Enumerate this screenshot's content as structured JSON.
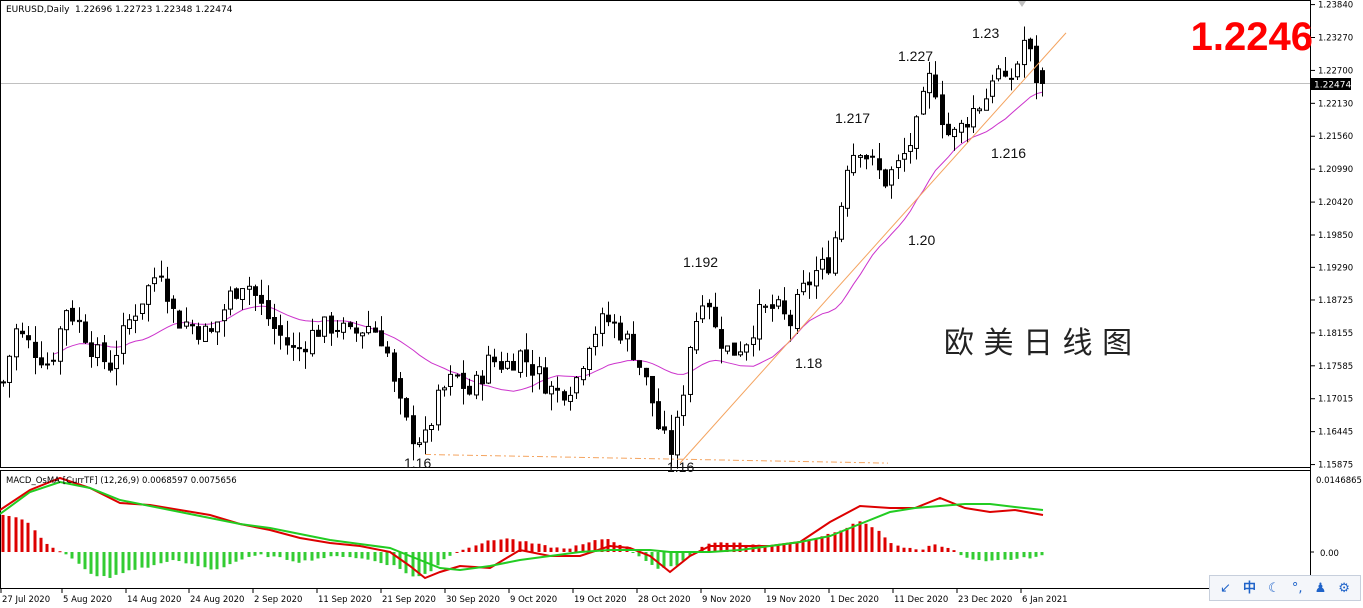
{
  "header": {
    "symbol": "EURUSD,Daily",
    "ohlc": "1.22696 1.22723 1.22348 1.22474"
  },
  "current_price": "1.2246",
  "watermark": "欧 美 日 线 图",
  "colors": {
    "candle": "#000000",
    "ma": "#cc33cc",
    "trendline": "#f4a460",
    "support": "#f4a460",
    "macd_line": "#dd0000",
    "signal_line": "#22cc22",
    "osma_positive": "#dd0000",
    "osma_negative": "#33cc33",
    "price_label": "#ff0000"
  },
  "chart_data": [
    {
      "type": "candlestick",
      "panel": "price",
      "title": "EURUSD,Daily",
      "y_ticks": [
        "1.23840",
        "1.23270",
        "1.22700",
        "1.22130",
        "1.21560",
        "1.20990",
        "1.20420",
        "1.19850",
        "1.19290",
        "1.18725",
        "1.18155",
        "1.17585",
        "1.17015",
        "1.16445",
        "1.15875"
      ],
      "ylim": [
        1.1585,
        1.2385
      ],
      "last_price_label": "1.22474",
      "x_tick_labels": [
        "27 Jul 2020",
        "5 Aug 2020",
        "14 Aug 2020",
        "24 Aug 2020",
        "2 Sep 2020",
        "11 Sep 2020",
        "21 Sep 2020",
        "30 Sep 2020",
        "9 Oct 2020",
        "19 Oct 2020",
        "28 Oct 2020",
        "9 Nov 2020",
        "19 Nov 2020",
        "1 Dec 2020",
        "11 Dec 2020",
        "23 Dec 2020",
        "6 Jan 2021"
      ],
      "annotations": [
        "1.16",
        "1.16",
        "1.192",
        "1.18",
        "1.20",
        "1.217",
        "1.227",
        "1.216",
        "1.23"
      ],
      "moving_average": "magenta line",
      "trendlines": [
        "rising line from the late-October low near 1.160 through the January highs",
        "horizontal dash-dot support near 1.160"
      ],
      "candles_summary": [
        {
          "period": "late Jul 2020",
          "close": 1.18
        },
        {
          "period": "early Aug 2020",
          "close": 1.185
        },
        {
          "period": "mid Aug 2020",
          "close": 1.188
        },
        {
          "period": "late Aug 2020",
          "close": 1.19
        },
        {
          "period": "early Sep 2020",
          "close": 1.184
        },
        {
          "period": "late Sep 2020",
          "close": 1.163
        },
        {
          "period": "early Oct 2020",
          "close": 1.178
        },
        {
          "period": "mid Oct 2020",
          "close": 1.182
        },
        {
          "period": "early Nov 2020",
          "close": 1.163
        },
        {
          "period": "mid Nov 2020",
          "close": 1.185
        },
        {
          "period": "early Dec 2020",
          "close": 1.212
        },
        {
          "period": "mid Dec 2020",
          "close": 1.226
        },
        {
          "period": "late Dec 2020",
          "close": 1.224
        },
        {
          "period": "6 Jan 2021",
          "close": 1.23
        },
        {
          "period": "last",
          "open": 1.22696,
          "high": 1.22723,
          "low": 1.22348,
          "close": 1.22474
        }
      ]
    },
    {
      "type": "bar",
      "panel": "indicator",
      "title": "MACD_OsMA [CurrTF] (12,26,9) 0.0068597 0.0075656",
      "y_ticks": [
        "0.0146865",
        "0.00"
      ],
      "series": [
        "MACD",
        "Signal",
        "OsMA histogram"
      ]
    }
  ],
  "ime_toolbar": {
    "items": [
      "↙",
      "中",
      "☾",
      "°,",
      "♟",
      "⚙"
    ]
  }
}
